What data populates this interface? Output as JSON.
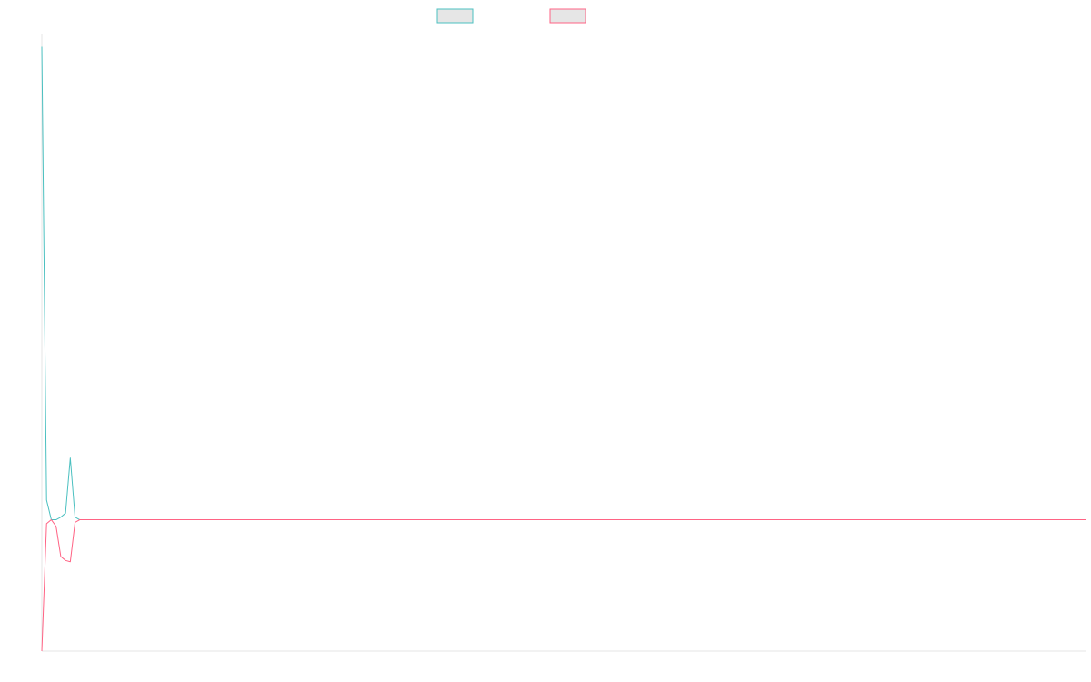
{
  "chart_data": {
    "type": "line",
    "title": "",
    "xlabel": "",
    "ylabel": "",
    "grid": false,
    "legend": "top-center",
    "colors": [
      "#4bc0c0",
      "#ff6384"
    ],
    "xlim": [
      0,
      220
    ],
    "ylim": [
      -1,
      3.7
    ],
    "series": [
      {
        "color": "#4bc0c0",
        "x": [
          0,
          1,
          2,
          3,
          4,
          5,
          6,
          7,
          8,
          9,
          10,
          12,
          13,
          14,
          20,
          40,
          60,
          80,
          100,
          120,
          140,
          160,
          180,
          200,
          220
        ],
        "y": [
          3.6,
          0.15,
          0.0,
          0.0,
          0.02,
          0.05,
          0.47,
          0.02,
          0.0,
          0.0,
          0.0,
          0.0,
          0.0,
          0.0,
          0.0,
          0.0,
          0.0,
          0.0,
          0.0,
          0.0,
          0.0,
          0.0,
          0.0,
          0.0,
          0.0
        ]
      },
      {
        "color": "#ff6384",
        "x": [
          0,
          1,
          2,
          3,
          4,
          5,
          6,
          7,
          8,
          9,
          10,
          20,
          40,
          60,
          80,
          100,
          120,
          140,
          160,
          180,
          200,
          220
        ],
        "y": [
          -1.0,
          -0.03,
          0.0,
          -0.05,
          -0.28,
          -0.31,
          -0.32,
          -0.02,
          0.0,
          0.0,
          0.0,
          0.0,
          0.0,
          0.0,
          0.0,
          0.0,
          0.0,
          0.0,
          0.0,
          0.0,
          0.0,
          0.0
        ]
      }
    ]
  }
}
